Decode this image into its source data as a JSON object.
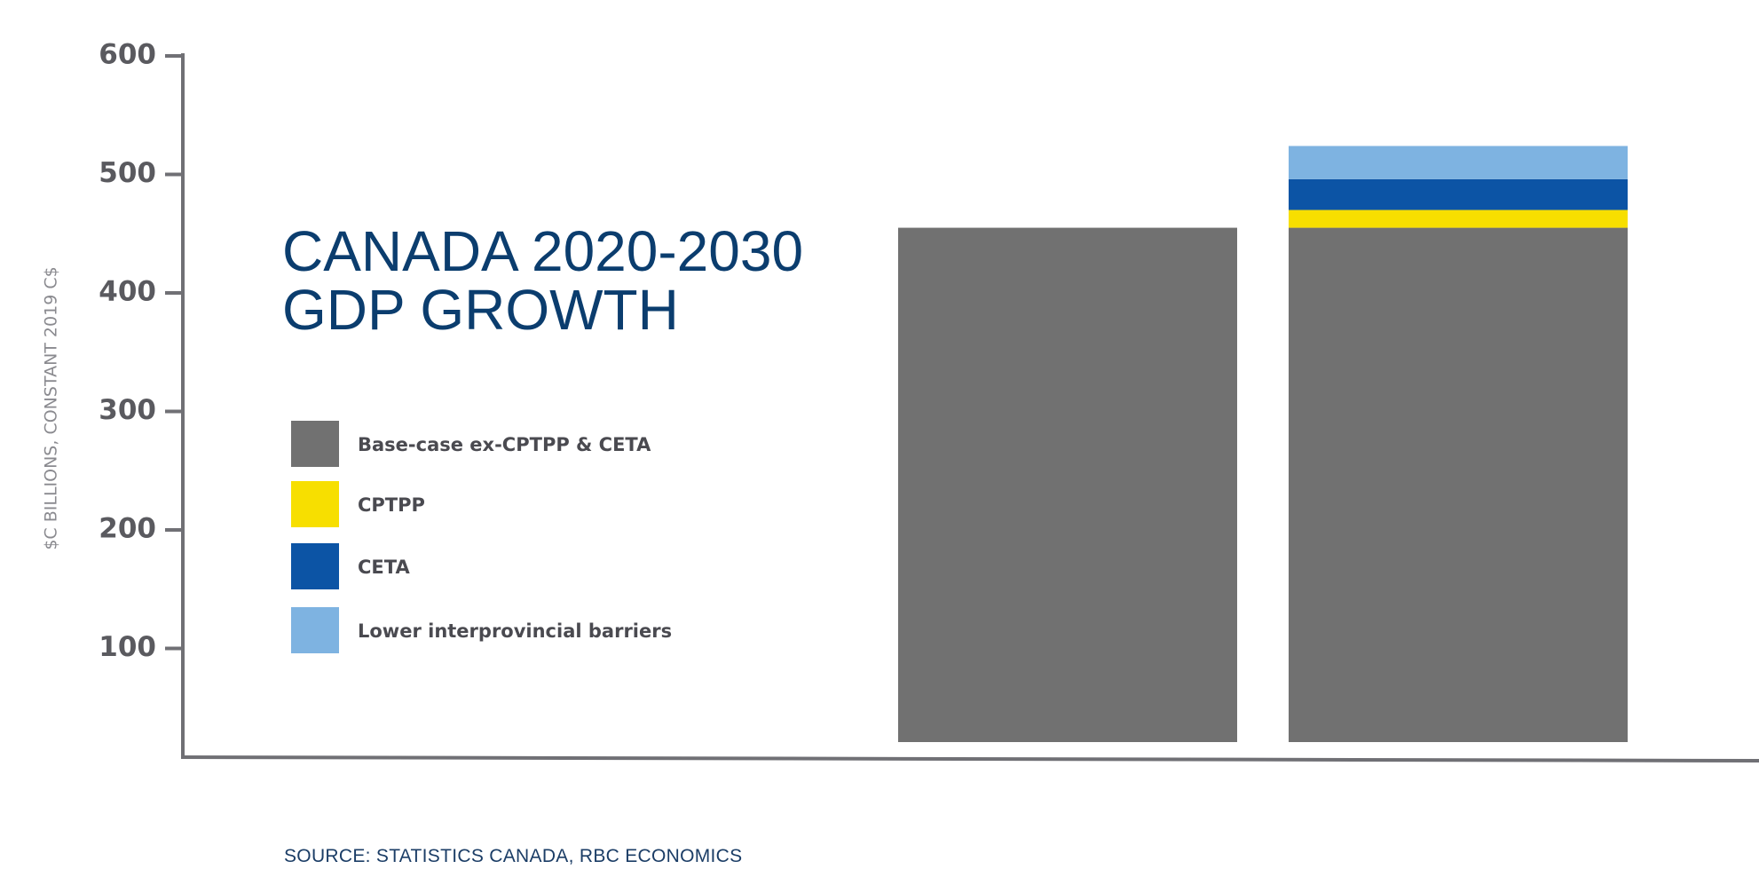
{
  "chart_data": {
    "type": "bar",
    "stacked": true,
    "title_lines": [
      "CANADA 2020-2030",
      "GDP GROWTH"
    ],
    "ylabel": "$C BILLIONS, CONSTANT 2019 C$",
    "xlabel": "",
    "categories": [
      "",
      ""
    ],
    "ylim": [
      0,
      600
    ],
    "yticks": [
      100,
      200,
      300,
      400,
      500,
      600
    ],
    "grid": false,
    "legend_placement": "left",
    "series": [
      {
        "name": "Base-case ex-CPTPP & CETA",
        "color": "#717171",
        "values": [
          455,
          455
        ]
      },
      {
        "name": "CPTPP",
        "color": "#f7df00",
        "values": [
          0,
          15
        ]
      },
      {
        "name": "CETA",
        "color": "#0c54a5",
        "values": [
          0,
          26
        ]
      },
      {
        "name": "Lower interprovincial barriers",
        "color": "#7eb3e1",
        "values": [
          0,
          28
        ]
      }
    ],
    "source": "SOURCE: STATISTICS CANADA, RBC ECONOMICS"
  }
}
